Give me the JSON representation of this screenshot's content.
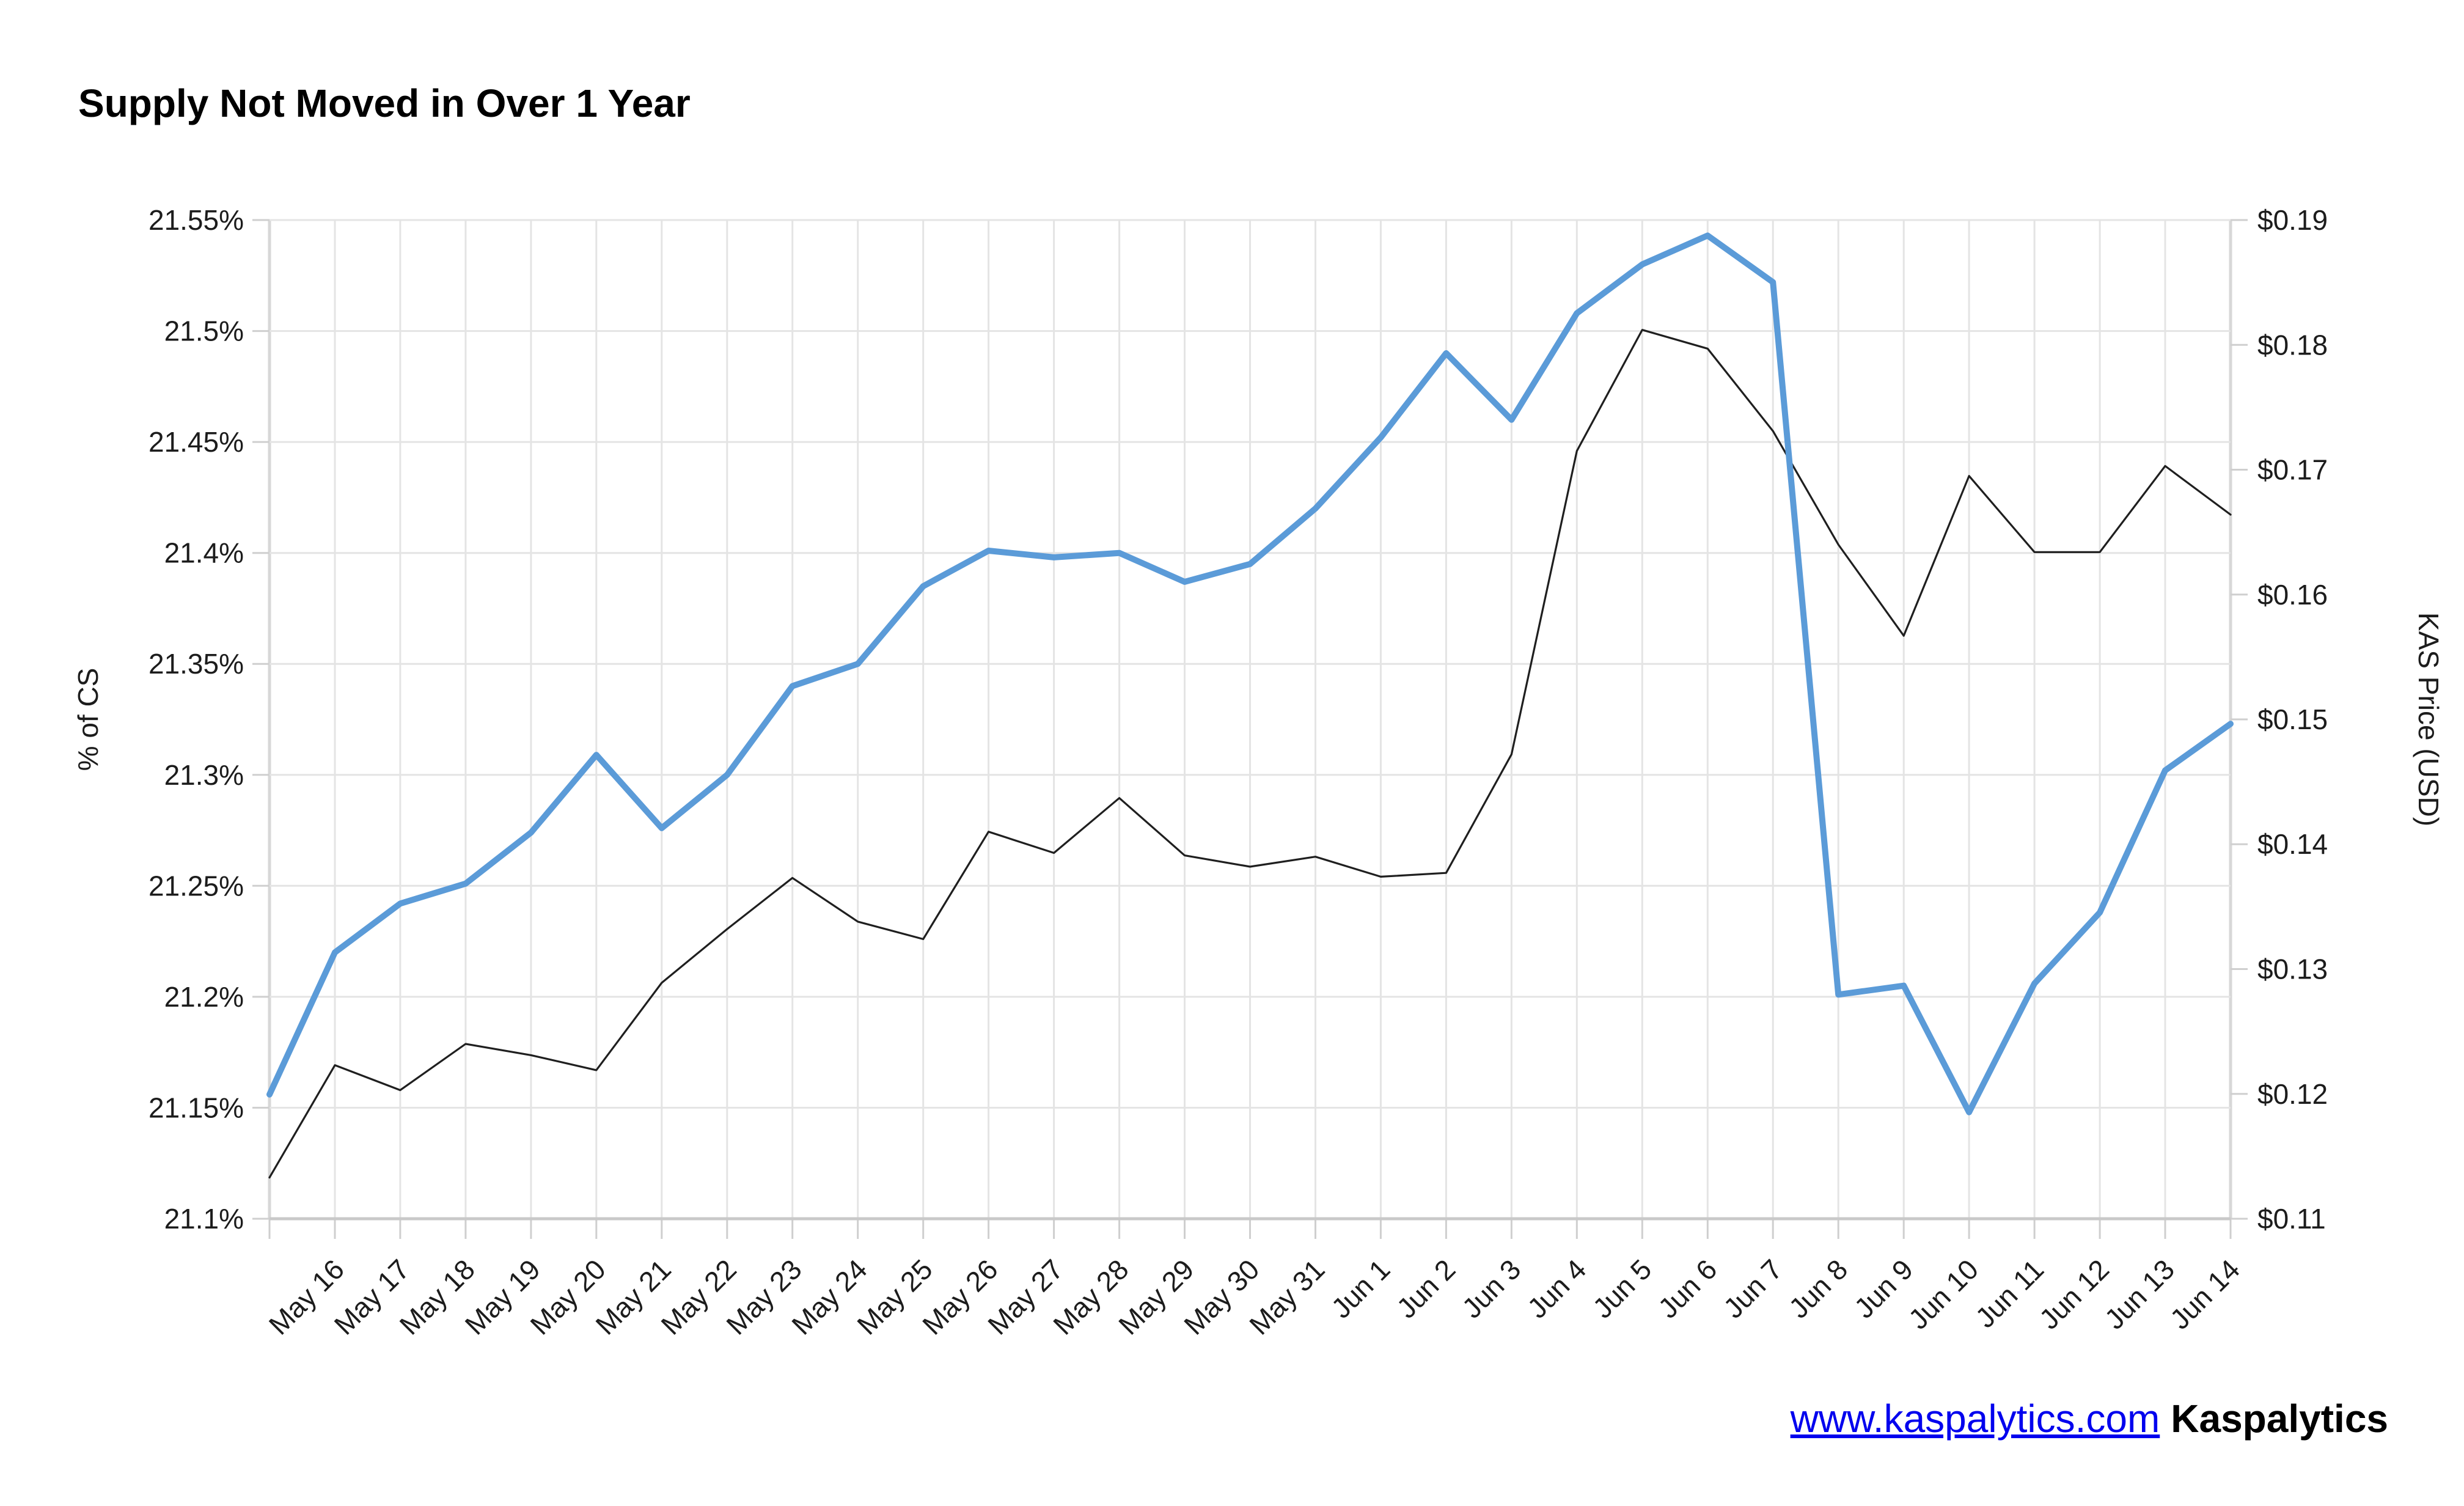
{
  "chart_data": {
    "type": "line",
    "title": "Supply Not Moved in Over 1 Year",
    "x": [
      "",
      "May 16",
      "May 17",
      "May 18",
      "May 19",
      "May 20",
      "May 21",
      "May 22",
      "May 23",
      "May 24",
      "May 25",
      "May 26",
      "May 27",
      "May 28",
      "May 29",
      "May 30",
      "May 31",
      "Jun 1",
      "Jun 2",
      "Jun 3",
      "Jun 4",
      "Jun 5",
      "Jun 6",
      "Jun 7",
      "Jun 8",
      "Jun 9",
      "Jun 10",
      "Jun 11",
      "Jun 12",
      "Jun 13",
      "Jun 14"
    ],
    "series": [
      {
        "name": "% of CS",
        "axis": "left",
        "color": "#5b9bd8",
        "stroke_width": 10,
        "values": [
          21.156,
          21.22,
          21.242,
          21.251,
          21.274,
          21.309,
          21.276,
          21.3,
          21.34,
          21.35,
          21.385,
          21.401,
          21.398,
          21.4,
          21.387,
          21.395,
          21.42,
          21.452,
          21.49,
          21.46,
          21.508,
          21.53,
          21.543,
          21.522,
          21.201,
          21.205,
          21.148,
          21.206,
          21.238,
          21.302,
          21.323
        ]
      },
      {
        "name": "KAS Price (USD)",
        "axis": "right",
        "color": "#1f1f1f",
        "stroke_width": 3.2,
        "values": [
          0.1133,
          0.1223,
          0.1203,
          0.124,
          0.1231,
          0.1219,
          0.1289,
          0.1332,
          0.1373,
          0.1338,
          0.1324,
          0.141,
          0.1393,
          0.1437,
          0.1391,
          0.1382,
          0.139,
          0.1374,
          0.1377,
          0.1472,
          0.1715,
          0.1812,
          0.1797,
          0.1731,
          0.164,
          0.1567,
          0.1695,
          0.1634,
          0.1634,
          0.1703,
          0.1664
        ]
      }
    ],
    "left_axis": {
      "label": "% of CS",
      "min": 21.1,
      "max": 21.55,
      "tick_values": [
        21.1,
        21.15,
        21.2,
        21.25,
        21.3,
        21.35,
        21.4,
        21.45,
        21.5,
        21.55
      ],
      "ticks": [
        "21.1%",
        "21.15%",
        "21.2%",
        "21.25%",
        "21.3%",
        "21.35%",
        "21.4%",
        "21.45%",
        "21.5%",
        "21.55%"
      ]
    },
    "right_axis": {
      "label": "KAS Price (USD)",
      "min": 0.11,
      "max": 0.19,
      "tick_values": [
        0.11,
        0.12,
        0.13,
        0.14,
        0.15,
        0.16,
        0.17,
        0.18,
        0.19
      ],
      "ticks": [
        "$0.11",
        "$0.12",
        "$0.13",
        "$0.14",
        "$0.15",
        "$0.16",
        "$0.17",
        "$0.18",
        "$0.19"
      ],
      "legend_position": "none"
    },
    "grid": true,
    "colors": {
      "grid_line": "#e4e4e4",
      "plot_edge": "#d7d7d7",
      "bottom_axis": "#c9c9c9",
      "tick_stub": "#cfcfcf"
    }
  },
  "footer": {
    "link_text": "www.kaspalytics.com",
    "brand_text": "Kaspalytics",
    "link_color": "#0000ee"
  }
}
